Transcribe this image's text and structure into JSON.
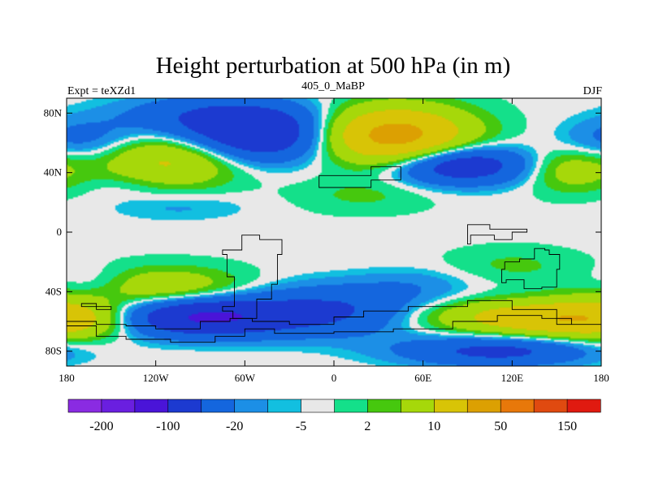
{
  "chart_data": {
    "type": "heatmap",
    "title": "Height perturbation at 500 hPa (in m)",
    "subtitle_left": "Expt = teXZd1",
    "subtitle_center": "405_0_MaBP",
    "subtitle_right": "DJF",
    "x_tick_labels": [
      "180",
      "120W",
      "60W",
      "0",
      "60E",
      "120E",
      "180"
    ],
    "x_tick_values": [
      -180,
      -120,
      -60,
      0,
      60,
      120,
      180
    ],
    "y_tick_labels": [
      "80N",
      "40N",
      "0",
      "40S",
      "80S"
    ],
    "y_tick_values": [
      80,
      40,
      0,
      -40,
      -80
    ],
    "xlim": [
      -180,
      180
    ],
    "ylim": [
      -90,
      90
    ],
    "colorbar": {
      "bin_colors": [
        "#8a2be2",
        "#6a1fe0",
        "#4a14d8",
        "#1c3ad0",
        "#1466de",
        "#1c8fe6",
        "#12bfe0",
        "#e8e8e8",
        "#14e08a",
        "#46c80e",
        "#a6d80a",
        "#d8c406",
        "#dca002",
        "#e8780a",
        "#e04a10",
        "#e01a10"
      ],
      "labeled_boundaries": [
        {
          "boundary": 1,
          "label": "-200"
        },
        {
          "boundary": 3,
          "label": "-100"
        },
        {
          "boundary": 5,
          "label": "-20"
        },
        {
          "boundary": 7,
          "label": "-5"
        },
        {
          "boundary": 9,
          "label": "2"
        },
        {
          "boundary": 11,
          "label": "10"
        },
        {
          "boundary": 13,
          "label": "50"
        },
        {
          "boundary": 15,
          "label": "150"
        }
      ]
    },
    "anomaly_fields": [
      {
        "lon": -110,
        "lat": 48,
        "amp": 58,
        "slon": 32,
        "slat": 12
      },
      {
        "lon": -80,
        "lat": 78,
        "amp": -45,
        "slon": 45,
        "slat": 10
      },
      {
        "lon": -50,
        "lat": 64,
        "amp": -85,
        "slon": 35,
        "slat": 12
      },
      {
        "lon": 40,
        "lat": 65,
        "amp": 125,
        "slon": 34,
        "slat": 13
      },
      {
        "lon": 85,
        "lat": 45,
        "amp": -85,
        "slon": 32,
        "slat": 9
      },
      {
        "lon": 160,
        "lat": 42,
        "amp": 35,
        "slon": 22,
        "slat": 10
      },
      {
        "lon": -170,
        "lat": 62,
        "amp": -28,
        "slon": 25,
        "slat": 10
      },
      {
        "lon": 20,
        "lat": 25,
        "amp": 12,
        "slon": 32,
        "slat": 8
      },
      {
        "lon": -105,
        "lat": 17,
        "amp": -12,
        "slon": 35,
        "slat": 7
      },
      {
        "lon": -120,
        "lat": -37,
        "amp": 45,
        "slon": 40,
        "slat": 9
      },
      {
        "lon": -90,
        "lat": -57,
        "amp": -105,
        "slon": 40,
        "slat": 9
      },
      {
        "lon": 0,
        "lat": -53,
        "amp": -55,
        "slon": 45,
        "slat": 12
      },
      {
        "lon": 130,
        "lat": -57,
        "amp": 62,
        "slon": 55,
        "slat": 8
      },
      {
        "lon": 160,
        "lat": -60,
        "amp": 35,
        "slon": 35,
        "slat": 8
      },
      {
        "lon": 110,
        "lat": -80,
        "amp": -60,
        "slon": 45,
        "slat": 7
      },
      {
        "lon": -175,
        "lat": -57,
        "amp": 30,
        "slon": 25,
        "slat": 12
      },
      {
        "lon": 120,
        "lat": -22,
        "amp": 12,
        "slon": 30,
        "slat": 8
      },
      {
        "lon": 55,
        "lat": -35,
        "amp": -12,
        "slon": 28,
        "slat": 8
      },
      {
        "lon": -160,
        "lat": -35,
        "amp": -25,
        "slon": 22,
        "slat": 8
      },
      {
        "lon": -140,
        "lat": 32,
        "amp": -8,
        "slon": 22,
        "slat": 6
      }
    ],
    "land_outlines": [
      [
        [
          -10,
          38
        ],
        [
          25,
          38
        ],
        [
          25,
          44
        ],
        [
          45,
          44
        ],
        [
          45,
          35
        ],
        [
          25,
          33
        ],
        [
          25,
          30
        ],
        [
          -10,
          30
        ]
      ],
      [
        [
          90,
          5
        ],
        [
          105,
          5
        ],
        [
          105,
          2
        ],
        [
          130,
          2
        ],
        [
          130,
          0
        ],
        [
          120,
          -5
        ],
        [
          108,
          -2
        ],
        [
          92,
          -8
        ],
        [
          90,
          -2
        ]
      ],
      [
        [
          115,
          -20
        ],
        [
          125,
          -18
        ],
        [
          135,
          -11
        ],
        [
          142,
          -12
        ],
        [
          145,
          -15
        ],
        [
          152,
          -25
        ],
        [
          150,
          -37
        ],
        [
          140,
          -38
        ],
        [
          128,
          -32
        ],
        [
          116,
          -34
        ],
        [
          113,
          -25
        ]
      ],
      [
        [
          -35,
          -5
        ],
        [
          -50,
          -2
        ],
        [
          -62,
          -12
        ],
        [
          -75,
          -15
        ],
        [
          -72,
          -30
        ],
        [
          -67,
          -50
        ],
        [
          -75,
          -53
        ],
        [
          -68,
          -58
        ],
        [
          -52,
          -45
        ],
        [
          -42,
          -35
        ],
        [
          -38,
          -15
        ]
      ],
      [
        [
          -180,
          -63
        ],
        [
          -160,
          -70
        ],
        [
          -140,
          -72
        ],
        [
          -110,
          -74
        ],
        [
          -80,
          -70
        ],
        [
          -60,
          -65
        ],
        [
          -40,
          -68
        ],
        [
          0,
          -67
        ],
        [
          40,
          -65
        ],
        [
          80,
          -60
        ],
        [
          110,
          -56
        ],
        [
          140,
          -58
        ],
        [
          160,
          -62
        ],
        [
          180,
          -63
        ],
        [
          180,
          -62
        ],
        [
          150,
          -52
        ],
        [
          120,
          -46
        ],
        [
          90,
          -50
        ],
        [
          50,
          -53
        ],
        [
          20,
          -57
        ],
        [
          0,
          -62
        ],
        [
          -30,
          -60
        ],
        [
          -55,
          -58
        ],
        [
          -70,
          -60
        ],
        [
          -90,
          -65
        ],
        [
          -120,
          -63
        ],
        [
          -140,
          -62
        ],
        [
          -160,
          -60
        ],
        [
          -180,
          -60
        ]
      ],
      [
        [
          -170,
          -50
        ],
        [
          -160,
          -52
        ],
        [
          -150,
          -50
        ],
        [
          -160,
          -48
        ]
      ]
    ]
  }
}
